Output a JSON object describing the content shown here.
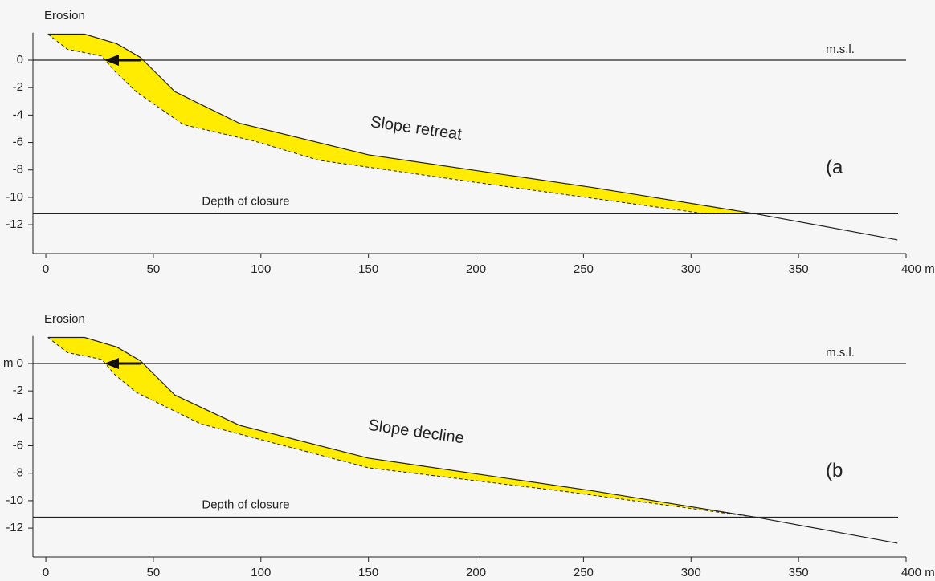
{
  "chart_data": [
    {
      "type": "line",
      "annotation": "Erosion",
      "panel_label": "(a",
      "slope_label": "Slope retreat",
      "fill_color": "#ffec00",
      "xlim": [
        -6,
        400
      ],
      "ylim": [
        -14.1,
        2
      ],
      "xticks": [
        0,
        50,
        100,
        150,
        200,
        250,
        300,
        350,
        {
          "value": 400,
          "label": "400 m"
        }
      ],
      "yticks": [
        0,
        -2,
        -4,
        -6,
        -8,
        -10,
        -12
      ],
      "reference_lines": [
        {
          "label": "m.s.l.",
          "value": 0
        },
        {
          "label": "Depth of closure",
          "value": -11.2
        }
      ],
      "series": [
        {
          "color": "#222222",
          "dashed": false,
          "x": [
            1,
            18,
            33,
            44,
            60,
            90,
            150,
            255,
            330,
            396
          ],
          "values": [
            1.9,
            1.9,
            1.2,
            0.2,
            -2.3,
            -4.6,
            -6.9,
            -9.3,
            -11.2,
            -13.1
          ]
        },
        {
          "color": "#222222",
          "dashed": true,
          "x": [
            1,
            10,
            26,
            32,
            42,
            64,
            97,
            127,
            150,
            195,
            307,
            330
          ],
          "values": [
            1.9,
            0.8,
            0.3,
            -0.8,
            -2.3,
            -4.7,
            -5.9,
            -7.3,
            -7.8,
            -8.8,
            -11.2,
            -11.2
          ]
        }
      ]
    },
    {
      "type": "line",
      "annotation": "Erosion",
      "panel_label": "(b",
      "slope_label": "Slope decline",
      "fill_color": "#ffec00",
      "xlim": [
        -6,
        400
      ],
      "ylim": [
        -14.1,
        2
      ],
      "xticks": [
        0,
        50,
        100,
        150,
        200,
        250,
        300,
        350,
        {
          "value": 400,
          "label": "400 m"
        }
      ],
      "yticks": [
        {
          "value": 0,
          "label": "m 0"
        },
        -2,
        -4,
        -6,
        -8,
        -10,
        -12
      ],
      "reference_lines": [
        {
          "label": "m.s.l.",
          "value": 0
        },
        {
          "label": "Depth of closure",
          "value": -11.2
        }
      ],
      "series": [
        {
          "color": "#222222",
          "dashed": false,
          "x": [
            1,
            18,
            33,
            44,
            60,
            90,
            150,
            255,
            330,
            396
          ],
          "values": [
            1.9,
            1.9,
            1.2,
            0.2,
            -2.3,
            -4.5,
            -6.9,
            -9.3,
            -11.2,
            -13.1
          ]
        },
        {
          "color": "#222222",
          "dashed": true,
          "x": [
            1,
            10,
            26,
            32,
            42,
            72,
            150,
            240,
            330
          ],
          "values": [
            1.9,
            0.8,
            0.3,
            -0.8,
            -2.1,
            -4.4,
            -7.6,
            -9.3,
            -11.2
          ]
        }
      ]
    }
  ]
}
